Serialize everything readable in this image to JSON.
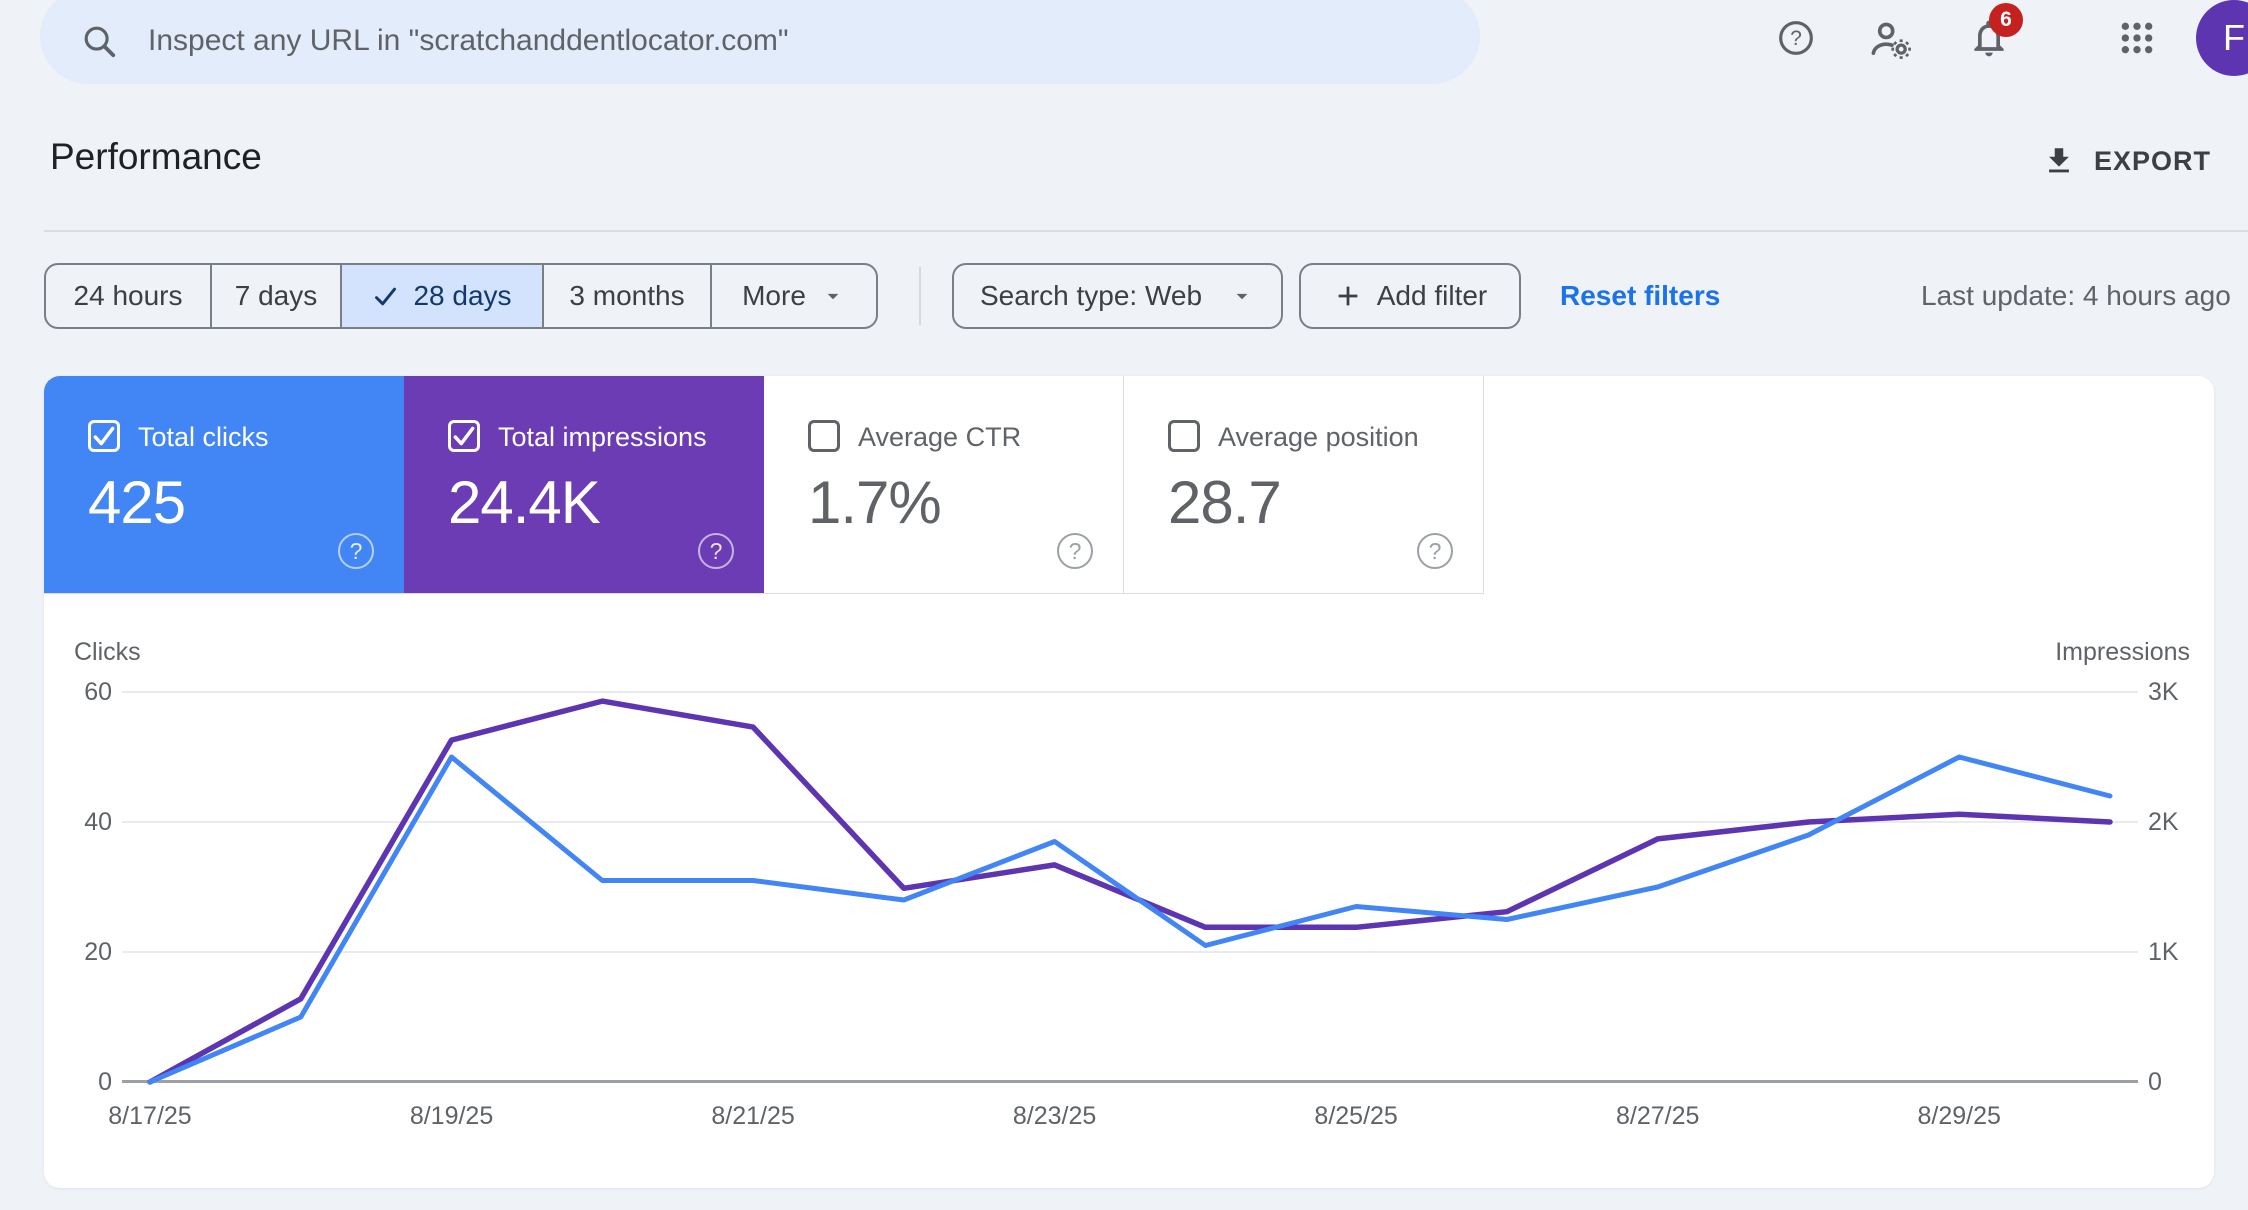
{
  "topbar": {
    "search_placeholder": "Inspect any URL in \"scratchanddentlocator.com\"",
    "notification_count": "6",
    "badge_color": "#c5221f",
    "avatar_letter": "F",
    "avatar_color": "#5e35b1",
    "icons": [
      "search-icon",
      "help-icon",
      "user-gear-icon",
      "bell-icon",
      "apps-grid-icon"
    ]
  },
  "page": {
    "title": "Performance",
    "export_label": "EXPORT",
    "last_update": "Last update: 4 hours ago"
  },
  "filters": {
    "date_ranges": [
      {
        "label": "24 hours",
        "selected": false
      },
      {
        "label": "7 days",
        "selected": false
      },
      {
        "label": "28 days",
        "selected": true
      },
      {
        "label": "3 months",
        "selected": false
      },
      {
        "label": "More",
        "selected": false
      }
    ],
    "selected_chip_bg": "#d3e3fd",
    "search_type": "Search type: Web",
    "add_filter": "Add filter",
    "reset_filters": "Reset filters"
  },
  "metrics": {
    "tiles": [
      {
        "label": "Total clicks",
        "value": "425",
        "checked": true,
        "color": "#4285f4"
      },
      {
        "label": "Total impressions",
        "value": "24.4K",
        "checked": true,
        "color": "#6c3cb5"
      },
      {
        "label": "Average CTR",
        "value": "1.7%",
        "checked": false,
        "color": "#ffffff"
      },
      {
        "label": "Average position",
        "value": "28.7",
        "checked": false,
        "color": "#ffffff"
      }
    ]
  },
  "chart_data": {
    "type": "line",
    "title": "",
    "x": [
      "8/17/25",
      "8/18/25",
      "8/19/25",
      "8/20/25",
      "8/21/25",
      "8/22/25",
      "8/23/25",
      "8/24/25",
      "8/25/25",
      "8/26/25",
      "8/27/25",
      "8/28/25",
      "8/29/25",
      "8/30/25"
    ],
    "x_tick_labels": [
      "8/17/25",
      "8/19/25",
      "8/21/25",
      "8/23/25",
      "8/25/25",
      "8/27/25",
      "8/29/25"
    ],
    "series": [
      {
        "name": "Clicks",
        "axis": "left",
        "color": "#4285f4",
        "values": [
          0,
          10,
          50,
          31,
          31,
          28,
          37,
          21,
          27,
          25,
          30,
          38,
          50,
          44
        ]
      },
      {
        "name": "Impressions",
        "axis": "right",
        "color": "#5e35b1",
        "values": [
          0,
          640,
          2630,
          2930,
          2730,
          1490,
          1670,
          1190,
          1190,
          1310,
          1870,
          2000,
          2060,
          2000
        ]
      }
    ],
    "left_axis": {
      "label": "Clicks",
      "max": 60,
      "ticks": [
        "60",
        "40",
        "20",
        "0"
      ]
    },
    "right_axis": {
      "label": "Impressions",
      "max": 3000,
      "ticks": [
        "3K",
        "2K",
        "1K",
        "0"
      ]
    },
    "grid": true,
    "legend_position": "none"
  }
}
